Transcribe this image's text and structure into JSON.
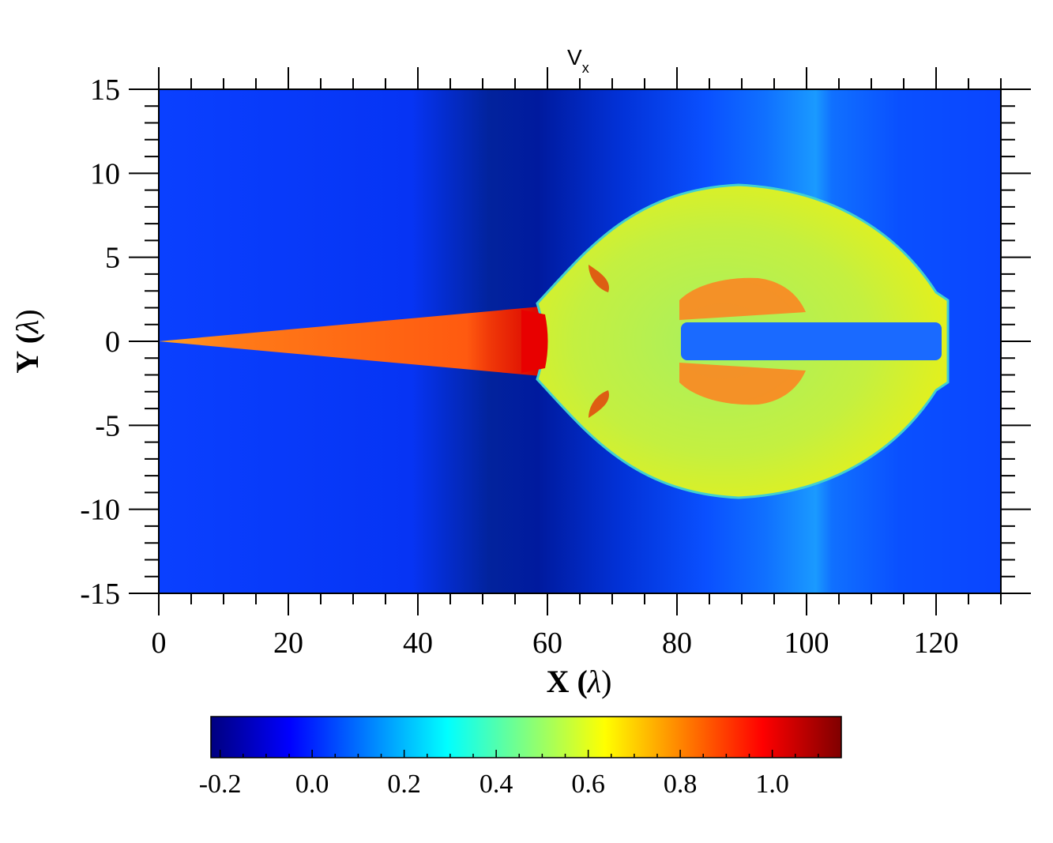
{
  "chart_data": {
    "type": "heatmap",
    "title": "V",
    "title_subscript": "x",
    "xlabel_main": "X (",
    "xlabel_symbol": "λ",
    "xlabel_end": ")",
    "ylabel_main": "Y (",
    "ylabel_symbol": "λ",
    "ylabel_end": ")",
    "xlim": [
      0,
      130
    ],
    "ylim": [
      -15,
      15
    ],
    "x_ticks": [
      "0",
      "20",
      "40",
      "60",
      "80",
      "100",
      "120"
    ],
    "x_tick_values": [
      0,
      20,
      40,
      60,
      80,
      100,
      120
    ],
    "y_ticks": [
      "15",
      "10",
      "5",
      "0",
      "-5",
      "-10",
      "-15"
    ],
    "y_tick_values": [
      15,
      10,
      5,
      0,
      -5,
      -10,
      -15
    ],
    "colorbar": {
      "range": [
        -0.22,
        1.15
      ],
      "ticks": [
        "-0.2",
        "0.0",
        "0.2",
        "0.4",
        "0.6",
        "0.8",
        "1.0"
      ],
      "tick_values": [
        -0.2,
        0.0,
        0.2,
        0.4,
        0.6,
        0.8,
        1.0
      ],
      "colormap": "jet"
    },
    "colors": {
      "background_flow": "#0a3cff",
      "dark_band": "#00109a",
      "jet_cone": "#ff5a10",
      "bubble": "#c8f040",
      "core_red": "#e80000"
    }
  }
}
